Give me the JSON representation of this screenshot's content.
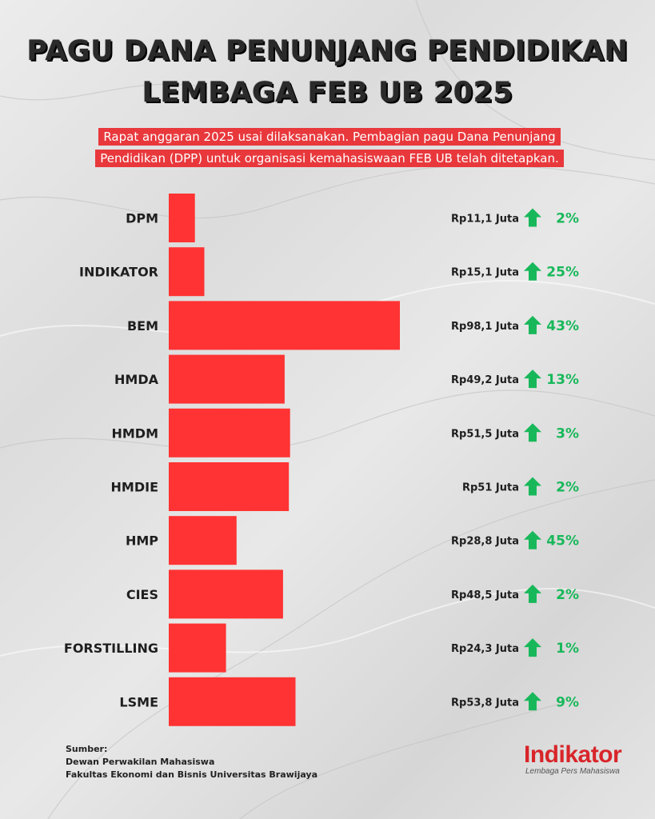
{
  "title_line1": "PAGU DANA PENUNJANG PENDIDIKAN",
  "title_line2": "LEMBAGA FEB UB 2025",
  "subtitle_line1": "Rapat anggaran 2025 usai dilaksanakan. Pembagian pagu Dana Penunjang",
  "subtitle_line2": "Pendidikan (DPP) untuk organisasi kemahasiswaan FEB UB telah ditetapkan.",
  "colors": {
    "bar": "#ff3333",
    "increase": "#18b85a",
    "subtitle_bg": "#e8383c",
    "logo": "#d8252a"
  },
  "chart_data": {
    "type": "bar",
    "orientation": "horizontal",
    "categories": [
      "DPM",
      "INDIKATOR",
      "BEM",
      "HMDA",
      "HMDM",
      "HMDIE",
      "HMP",
      "CIES",
      "FORSTILLING",
      "LSME"
    ],
    "values": [
      11.1,
      15.1,
      98.1,
      49.2,
      51.5,
      51,
      28.8,
      48.5,
      24.3,
      53.8
    ],
    "value_labels": [
      "Rp11,1 Juta",
      "Rp15,1 Juta",
      "Rp98,1 Juta",
      "Rp49,2 Juta",
      "Rp51,5 Juta",
      "Rp51 Juta",
      "Rp28,8 Juta",
      "Rp48,5 Juta",
      "Rp24,3 Juta",
      "Rp53,8 Juta"
    ],
    "change_labels": [
      "2%",
      "25%",
      "43%",
      "13%",
      "3%",
      "2%",
      "45%",
      "2%",
      "1%",
      "9%"
    ],
    "change_direction": [
      "up",
      "up",
      "up",
      "up",
      "up",
      "up",
      "up",
      "up",
      "up",
      "up"
    ],
    "arrow_icon": "up-arrow-icon",
    "xlim": [
      0,
      98.1
    ],
    "grid": false
  },
  "source": {
    "label": "Sumber:",
    "line1": "Dewan Perwakilan Mahasiswa",
    "line2": "Fakultas Ekonomi dan Bisnis Universitas Brawijaya"
  },
  "logo": {
    "name": "Indikator",
    "tagline": "Lembaga Pers Mahasiswa"
  }
}
